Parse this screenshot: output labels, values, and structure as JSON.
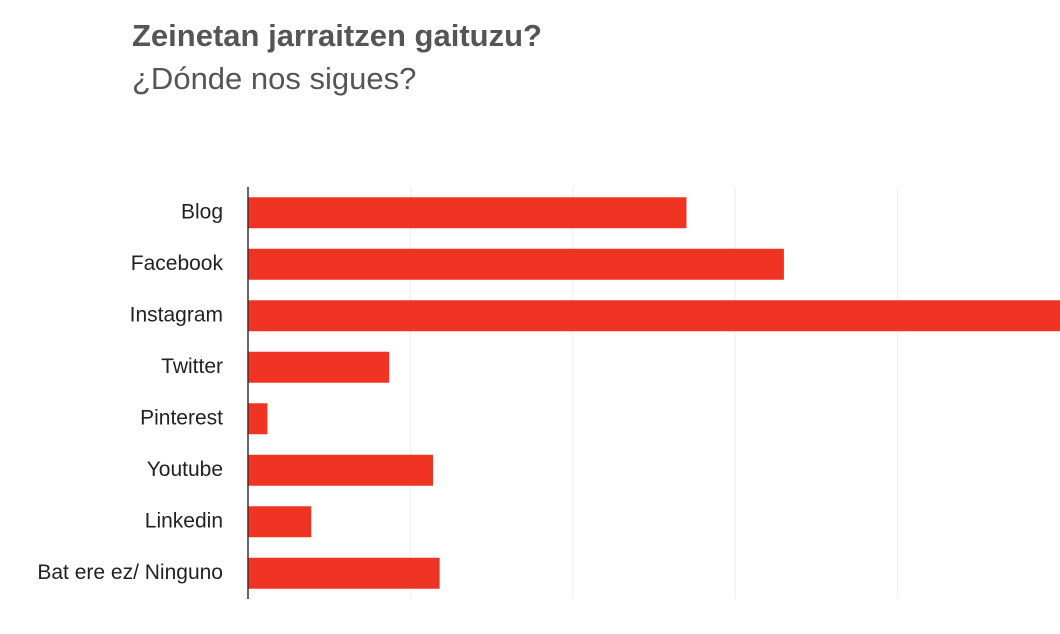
{
  "chart_data": {
    "type": "barh",
    "title": "Zeinetan jarraitzen gaituzu?",
    "subtitle": "¿Dónde nos sigues?",
    "categories": [
      "Blog",
      "Facebook",
      "Instagram",
      "Twitter",
      "Pinterest",
      "Youtube",
      "Linkedin",
      "Bat ere ez/ Ninguno"
    ],
    "values": [
      27,
      33,
      50,
      8.7,
      1.2,
      11.4,
      3.9,
      11.8
    ],
    "color": "#f03424",
    "xlim": [
      0,
      50
    ],
    "xticks": [
      10,
      20,
      30,
      40
    ],
    "grid": true
  }
}
